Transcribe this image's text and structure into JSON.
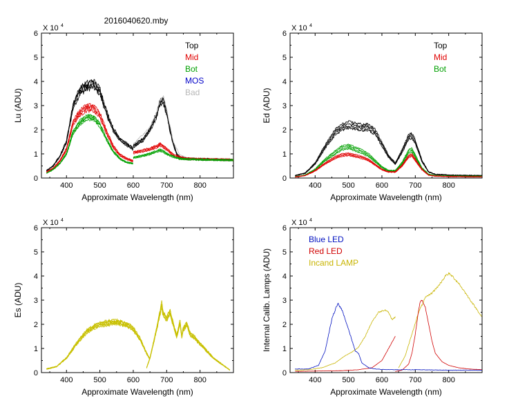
{
  "figure_title": "2016040620.mby",
  "colors": {
    "top": "#000000",
    "mid": "#e00000",
    "bot": "#00a000",
    "mos": "#0000c8",
    "bad": "#b8b8b8",
    "es": "#c8c000",
    "blue_led": "#0010c0",
    "red_led": "#d00000",
    "incand_lamp": "#c8b400"
  },
  "chart_data": [
    {
      "id": "lu",
      "type": "line",
      "ylabel": "Lu (ADU)",
      "xlabel": "Approximate Wavelength (nm)",
      "exponent_label": "X 10",
      "exponent_power": "4",
      "xlim": [
        325,
        900
      ],
      "ylim": [
        0,
        6
      ],
      "xticks": [
        "400",
        "500",
        "600",
        "700",
        "800"
      ],
      "yticks": [
        "0",
        "1",
        "2",
        "3",
        "4",
        "5",
        "6"
      ],
      "legend": [
        {
          "label": "Top",
          "color_key": "top"
        },
        {
          "label": "Mid",
          "color_key": "mid"
        },
        {
          "label": "Bot",
          "color_key": "bot"
        },
        {
          "label": "MOS",
          "color_key": "mos"
        },
        {
          "label": "Bad",
          "color_key": "bad"
        }
      ],
      "series": [
        {
          "name": "Top",
          "color_key": "top",
          "copies": 4,
          "spread": 0.06,
          "noise": 0.06,
          "segments": [
            {
              "x": [
                340,
                360,
                380,
                400,
                420,
                440,
                460,
                480,
                500,
                520,
                540,
                560,
                580,
                600
              ],
              "y": [
                0.3,
                0.5,
                0.9,
                1.5,
                3.0,
                3.6,
                3.8,
                3.9,
                3.6,
                2.7,
                2.0,
                1.6,
                1.4,
                1.2
              ]
            },
            {
              "x": [
                600,
                610,
                630,
                650,
                670,
                680,
                690,
                700,
                710,
                720,
                730,
                740,
                760,
                800,
                900
              ],
              "y": [
                1.3,
                1.4,
                1.6,
                2.0,
                2.6,
                3.1,
                3.2,
                2.7,
                2.0,
                1.4,
                1.0,
                0.85,
                0.8,
                0.78,
                0.75
              ]
            }
          ]
        },
        {
          "name": "Mid",
          "color_key": "mid",
          "copies": 4,
          "spread": 0.07,
          "noise": 0.05,
          "segments": [
            {
              "x": [
                340,
                360,
                380,
                400,
                420,
                440,
                460,
                480,
                500,
                520,
                540,
                560,
                580,
                600
              ],
              "y": [
                0.25,
                0.4,
                0.7,
                1.2,
                2.3,
                2.7,
                2.9,
                2.9,
                2.6,
                1.9,
                1.3,
                0.95,
                0.8,
                0.7
              ]
            },
            {
              "x": [
                600,
                620,
                650,
                670,
                680,
                690,
                700,
                720,
                740,
                760,
                800,
                900
              ],
              "y": [
                1.05,
                1.1,
                1.2,
                1.3,
                1.4,
                1.3,
                1.2,
                0.95,
                0.85,
                0.8,
                0.78,
                0.75
              ]
            }
          ]
        },
        {
          "name": "Bot",
          "color_key": "bot",
          "copies": 4,
          "spread": 0.06,
          "noise": 0.05,
          "segments": [
            {
              "x": [
                340,
                360,
                380,
                400,
                420,
                440,
                460,
                480,
                500,
                520,
                540,
                560,
                580,
                600
              ],
              "y": [
                0.2,
                0.35,
                0.6,
                1.0,
                1.9,
                2.3,
                2.5,
                2.5,
                2.2,
                1.6,
                1.1,
                0.8,
                0.65,
                0.6
              ]
            },
            {
              "x": [
                600,
                620,
                650,
                670,
                680,
                690,
                700,
                720,
                740,
                760,
                800,
                900
              ],
              "y": [
                0.85,
                0.9,
                1.0,
                1.1,
                1.15,
                1.1,
                1.0,
                0.88,
                0.8,
                0.78,
                0.76,
                0.74
              ]
            }
          ]
        },
        {
          "name": "Bad",
          "color_key": "bad",
          "copies": 1,
          "spread": 0,
          "noise": 0.04,
          "segments": [
            {
              "x": [
                600,
                650,
                670,
                680,
                690,
                700,
                720,
                740,
                760
              ],
              "y": [
                1.4,
                2.1,
                2.7,
                3.2,
                3.4,
                2.8,
                1.5,
                0.95,
                0.85
              ]
            }
          ]
        }
      ]
    },
    {
      "id": "ed",
      "type": "line",
      "ylabel": "Ed  (ADU)",
      "xlabel": "Approximate Wavelength (nm)",
      "exponent_label": "X 10",
      "exponent_power": "4",
      "xlim": [
        325,
        900
      ],
      "ylim": [
        0,
        6
      ],
      "xticks": [
        "400",
        "500",
        "600",
        "700",
        "800"
      ],
      "yticks": [
        "0",
        "1",
        "2",
        "3",
        "4",
        "5",
        "6"
      ],
      "legend": [
        {
          "label": "Top",
          "color_key": "top"
        },
        {
          "label": "Mid",
          "color_key": "mid"
        },
        {
          "label": "Bot",
          "color_key": "bot"
        }
      ],
      "series": [
        {
          "name": "Top",
          "color_key": "top",
          "copies": 4,
          "spread": 0.1,
          "noise": 0.05,
          "segments": [
            {
              "x": [
                340,
                370,
                400,
                430,
                460,
                480,
                500,
                520,
                540,
                560,
                580,
                600,
                620,
                640,
                660,
                680,
                690,
                700,
                720,
                740,
                760,
                800,
                900
              ],
              "y": [
                0.1,
                0.2,
                0.6,
                1.3,
                1.9,
                2.1,
                2.2,
                2.15,
                2.1,
                2.1,
                1.9,
                1.4,
                0.9,
                0.6,
                1.1,
                1.7,
                1.75,
                1.5,
                0.7,
                0.25,
                0.15,
                0.12,
                0.1
              ]
            }
          ]
        },
        {
          "name": "Bot",
          "color_key": "bot",
          "copies": 4,
          "spread": 0.12,
          "noise": 0.05,
          "segments": [
            {
              "x": [
                340,
                370,
                400,
                430,
                460,
                480,
                500,
                520,
                540,
                560,
                580,
                600,
                620,
                640,
                660,
                680,
                690,
                700,
                720,
                740,
                760,
                800,
                900
              ],
              "y": [
                0.05,
                0.12,
                0.35,
                0.75,
                1.05,
                1.25,
                1.3,
                1.2,
                1.1,
                0.95,
                0.7,
                0.45,
                0.3,
                0.3,
                0.6,
                1.1,
                1.15,
                0.9,
                0.4,
                0.15,
                0.1,
                0.08,
                0.07
              ]
            }
          ]
        },
        {
          "name": "Mid",
          "color_key": "mid",
          "copies": 4,
          "spread": 0.1,
          "noise": 0.04,
          "segments": [
            {
              "x": [
                340,
                370,
                400,
                430,
                460,
                480,
                500,
                520,
                540,
                560,
                580,
                600,
                620,
                640,
                660,
                680,
                690,
                700,
                720,
                740,
                760,
                800,
                900
              ],
              "y": [
                0.04,
                0.1,
                0.3,
                0.6,
                0.85,
                0.95,
                0.98,
                0.92,
                0.85,
                0.75,
                0.55,
                0.35,
                0.25,
                0.25,
                0.5,
                0.9,
                0.95,
                0.75,
                0.35,
                0.12,
                0.08,
                0.06,
                0.05
              ]
            }
          ]
        }
      ]
    },
    {
      "id": "es",
      "type": "line",
      "ylabel": "Es  (ADU)",
      "xlabel": "Approximate Wavelength (nm)",
      "exponent_label": "X 10",
      "exponent_power": "4",
      "xlim": [
        325,
        900
      ],
      "ylim": [
        0,
        6
      ],
      "xticks": [
        "400",
        "500",
        "600",
        "700",
        "800"
      ],
      "yticks": [
        "0",
        "1",
        "2",
        "3",
        "4",
        "5",
        "6"
      ],
      "legend": [],
      "series": [
        {
          "name": "Es",
          "color_key": "es",
          "copies": 6,
          "spread": 0.07,
          "noise": 0.06,
          "segments": [
            {
              "x": [
                340,
                370,
                400,
                430,
                460,
                490,
                520,
                550,
                580,
                600,
                620,
                640,
                650
              ],
              "y": [
                0.15,
                0.25,
                0.6,
                1.2,
                1.7,
                1.95,
                2.05,
                2.1,
                2.0,
                1.8,
                1.4,
                0.8,
                0.55
              ]
            },
            {
              "x": [
                640,
                650,
                660,
                670,
                680,
                685,
                690,
                700,
                710,
                720,
                730,
                740,
                745,
                750,
                760,
                770,
                780,
                800,
                820,
                840,
                860,
                880,
                890
              ],
              "y": [
                0.2,
                0.6,
                1.2,
                1.8,
                2.5,
                2.8,
                2.4,
                2.2,
                2.5,
                2.0,
                1.5,
                2.1,
                1.5,
                1.8,
                2.0,
                1.6,
                1.5,
                1.2,
                0.9,
                0.6,
                0.4,
                0.2,
                0.1
              ]
            }
          ]
        }
      ]
    },
    {
      "id": "cal",
      "type": "line",
      "ylabel": "Internal Calib. Lamps (ADU)",
      "xlabel": "Approximate Wavelength (nm)",
      "exponent_label": "X 10",
      "exponent_power": "4",
      "xlim": [
        325,
        900
      ],
      "ylim": [
        0,
        6
      ],
      "xticks": [
        "400",
        "500",
        "600",
        "700",
        "800"
      ],
      "yticks": [
        "0",
        "1",
        "2",
        "3",
        "4",
        "5",
        "6"
      ],
      "legend": [
        {
          "label": "Blue LED",
          "color_key": "blue_led"
        },
        {
          "label": "Red LED",
          "color_key": "red_led"
        },
        {
          "label": "Incand LAMP",
          "color_key": "incand_lamp"
        }
      ],
      "series": [
        {
          "name": "Incand LAMP",
          "color_key": "incand_lamp",
          "copies": 1,
          "spread": 0,
          "noise": 0.025,
          "segments": [
            {
              "x": [
                340,
                380,
                420,
                460,
                490,
                510,
                530,
                550,
                570,
                590,
                600,
                610,
                620,
                630,
                640
              ],
              "y": [
                0.1,
                0.12,
                0.2,
                0.4,
                0.7,
                0.85,
                1.05,
                1.5,
                2.1,
                2.5,
                2.55,
                2.6,
                2.5,
                2.2,
                2.3
              ]
            },
            {
              "x": [
                650,
                670,
                690,
                710,
                730,
                750,
                770,
                790,
                800,
                810,
                830,
                850,
                870,
                890,
                900
              ],
              "y": [
                0.2,
                0.7,
                1.6,
                2.5,
                3.1,
                3.3,
                3.6,
                4.0,
                4.1,
                4.0,
                3.7,
                3.3,
                2.9,
                2.5,
                2.3
              ]
            }
          ]
        },
        {
          "name": "Red LED",
          "color_key": "red_led",
          "copies": 1,
          "spread": 0,
          "noise": 0.015,
          "segments": [
            {
              "x": [
                340,
                480,
                530,
                570,
                600,
                620,
                640
              ],
              "y": [
                0.05,
                0.08,
                0.12,
                0.2,
                0.5,
                1.0,
                1.5
              ]
            },
            {
              "x": [
                640,
                660,
                680,
                690,
                700,
                710,
                715,
                720,
                730,
                740,
                750,
                760,
                780,
                800,
                830,
                860,
                900
              ],
              "y": [
                0.05,
                0.1,
                0.35,
                0.8,
                1.6,
                2.6,
                2.95,
                3.0,
                2.7,
                2.0,
                1.3,
                0.8,
                0.45,
                0.3,
                0.2,
                0.15,
                0.12
              ]
            }
          ]
        },
        {
          "name": "Blue LED",
          "color_key": "blue_led",
          "copies": 1,
          "spread": 0,
          "noise": 0.03,
          "segments": [
            {
              "x": [
                340,
                380,
                410,
                430,
                450,
                465,
                470,
                480,
                500,
                520,
                530,
                540,
                560,
                580,
                600,
                640,
                700,
                800,
                900
              ],
              "y": [
                0.15,
                0.15,
                0.3,
                0.9,
                2.2,
                2.8,
                2.85,
                2.6,
                1.8,
                0.9,
                0.8,
                0.4,
                0.2,
                0.15,
                0.13,
                0.12,
                0.12,
                0.1,
                0.1
              ]
            }
          ]
        }
      ]
    }
  ]
}
